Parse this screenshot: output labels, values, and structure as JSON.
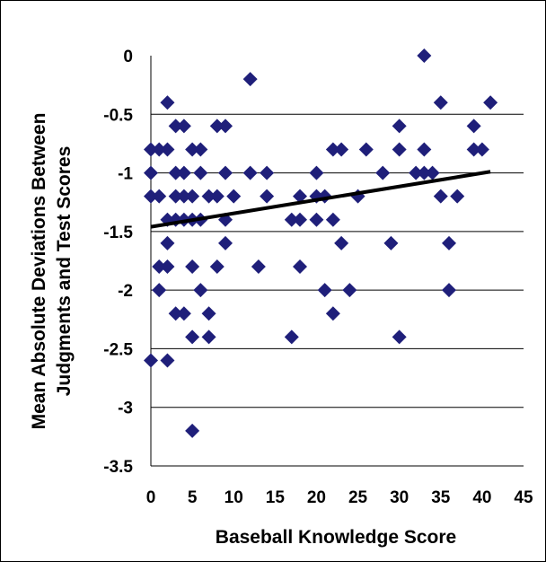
{
  "chart_data": {
    "type": "scatter",
    "title": "",
    "xlabel": "Baseball Knowledge Score",
    "ylabel_lines": [
      "Mean Absolute Deviations Between",
      "Judgments and Test Scores"
    ],
    "xlim": [
      0,
      45
    ],
    "ylim": [
      -3.5,
      0
    ],
    "x_ticks": [
      "0",
      "5",
      "10",
      "15",
      "20",
      "25",
      "30",
      "35",
      "40",
      "45"
    ],
    "y_ticks": [
      "0",
      "-0.5",
      "-1",
      "-1.5",
      "-2",
      "-2.5",
      "-3",
      "-3.5"
    ],
    "grid": "horizontal",
    "colors": {
      "points": "#1F1F7A",
      "trendline": "#000000",
      "gridline": "#000000"
    },
    "trendline": {
      "x": [
        0,
        41
      ],
      "y": [
        -1.46,
        -0.99
      ]
    },
    "points": [
      [
        0,
        -0.8
      ],
      [
        0,
        -1
      ],
      [
        0,
        -1.2
      ],
      [
        0,
        -2.6
      ],
      [
        1,
        -0.8
      ],
      [
        1,
        -1.2
      ],
      [
        1,
        -1.8
      ],
      [
        1,
        -2
      ],
      [
        2,
        -0.4
      ],
      [
        2,
        -0.8
      ],
      [
        2,
        -1.4
      ],
      [
        2,
        -1.6
      ],
      [
        2,
        -1.8
      ],
      [
        2,
        -2.6
      ],
      [
        3,
        -0.6
      ],
      [
        3,
        -1
      ],
      [
        3,
        -1.2
      ],
      [
        3,
        -1.4
      ],
      [
        3,
        -2.2
      ],
      [
        4,
        -0.6
      ],
      [
        4,
        -1
      ],
      [
        4,
        -1.2
      ],
      [
        4,
        -1.4
      ],
      [
        4,
        -2.2
      ],
      [
        5,
        -0.8
      ],
      [
        5,
        -1.2
      ],
      [
        5,
        -1.4
      ],
      [
        5,
        -1.8
      ],
      [
        5,
        -2.4
      ],
      [
        5,
        -3.2
      ],
      [
        6,
        -0.8
      ],
      [
        6,
        -1
      ],
      [
        6,
        -1.4
      ],
      [
        6,
        -2
      ],
      [
        7,
        -1.2
      ],
      [
        7,
        -2.2
      ],
      [
        7,
        -2.4
      ],
      [
        8,
        -0.6
      ],
      [
        8,
        -1.2
      ],
      [
        8,
        -1.8
      ],
      [
        9,
        -0.6
      ],
      [
        9,
        -1
      ],
      [
        9,
        -1.4
      ],
      [
        9,
        -1.6
      ],
      [
        10,
        -1.2
      ],
      [
        12,
        -0.2
      ],
      [
        12,
        -1
      ],
      [
        13,
        -1.8
      ],
      [
        14,
        -1
      ],
      [
        14,
        -1.2
      ],
      [
        17,
        -1.4
      ],
      [
        17,
        -2.4
      ],
      [
        18,
        -1.2
      ],
      [
        18,
        -1.4
      ],
      [
        18,
        -1.8
      ],
      [
        20,
        -1
      ],
      [
        20,
        -1.2
      ],
      [
        20,
        -1.4
      ],
      [
        21,
        -1.2
      ],
      [
        21,
        -2
      ],
      [
        22,
        -0.8
      ],
      [
        22,
        -1.4
      ],
      [
        22,
        -2.2
      ],
      [
        23,
        -0.8
      ],
      [
        23,
        -1.6
      ],
      [
        24,
        -2
      ],
      [
        25,
        -1.2
      ],
      [
        26,
        -0.8
      ],
      [
        28,
        -1
      ],
      [
        29,
        -1.6
      ],
      [
        30,
        -0.6
      ],
      [
        30,
        -0.8
      ],
      [
        30,
        -2.4
      ],
      [
        32,
        -1
      ],
      [
        33,
        0
      ],
      [
        33,
        -0.8
      ],
      [
        33,
        -1
      ],
      [
        34,
        -1
      ],
      [
        35,
        -0.4
      ],
      [
        35,
        -1.2
      ],
      [
        36,
        -1.6
      ],
      [
        36,
        -2
      ],
      [
        37,
        -1.2
      ],
      [
        39,
        -0.6
      ],
      [
        39,
        -0.8
      ],
      [
        40,
        -0.8
      ],
      [
        41,
        -0.4
      ]
    ]
  }
}
